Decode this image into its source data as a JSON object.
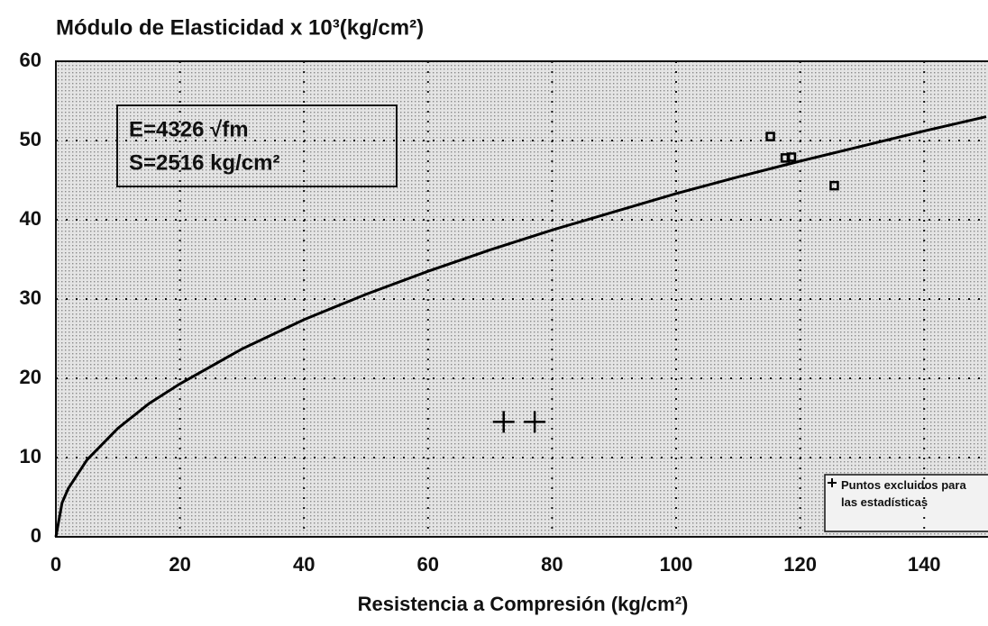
{
  "chart_data": {
    "type": "scatter",
    "title": "Módulo de Elasticidad x 10³(kg/cm²)",
    "x_label": "Resistencia a Compresión (kg/cm²)",
    "annotations": [
      "E=4326 √fm",
      "S=2516 kg/cm²"
    ],
    "xlim": [
      0,
      150
    ],
    "ylim": [
      0,
      60
    ],
    "xticks": [
      0,
      20,
      40,
      60,
      80,
      100,
      120,
      140
    ],
    "yticks": [
      0,
      10,
      20,
      30,
      40,
      50,
      60
    ],
    "grid": true,
    "legend": "lower right",
    "series": [
      {
        "marker": "line",
        "color": "#000000",
        "x": [
          0,
          1,
          2,
          5,
          10,
          15,
          20,
          30,
          40,
          50,
          60,
          70,
          80,
          90,
          100,
          110,
          120,
          130,
          140,
          150
        ],
        "values": [
          0,
          4.3,
          6.1,
          9.7,
          13.7,
          16.8,
          19.3,
          23.7,
          27.4,
          30.6,
          33.5,
          36.2,
          38.7,
          41.0,
          43.3,
          45.4,
          47.4,
          49.3,
          51.2,
          53.0
        ]
      },
      {
        "marker": "square",
        "color": "#000000",
        "x": [
          115.2,
          117.6,
          118.6,
          125.5
        ],
        "values": [
          50.5,
          47.8,
          47.9,
          44.3
        ]
      },
      {
        "name": "Puntos excluidos para las estadísticas",
        "marker": "cross",
        "color": "#000000",
        "x": [
          72.2,
          77.2
        ],
        "values": [
          14.5,
          14.5
        ]
      }
    ]
  }
}
